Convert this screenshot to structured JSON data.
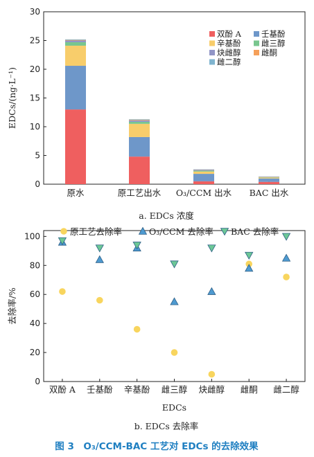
{
  "chart_data": [
    {
      "type": "bar",
      "stacked": true,
      "caption": "a. EDCs 浓度",
      "ylabel": "EDCs/(ng·L⁻¹)",
      "ylim": [
        0,
        30
      ],
      "yticks": [
        "0",
        "5",
        "10",
        "15",
        "20",
        "25",
        "30"
      ],
      "categories": [
        "原水",
        "原工艺出水",
        "O₃/CCM 出水",
        "BAC 出水"
      ],
      "series": [
        {
          "name": "双酚 A",
          "color": "#ef5f5f",
          "values": [
            13.0,
            4.8,
            0.5,
            0.4
          ]
        },
        {
          "name": "壬基酚",
          "color": "#6e97c9",
          "values": [
            7.6,
            3.4,
            1.3,
            0.6
          ]
        },
        {
          "name": "辛基酚",
          "color": "#f8cd6b",
          "values": [
            3.5,
            2.3,
            0.4,
            0.15
          ]
        },
        {
          "name": "雌三醇",
          "color": "#79c68e",
          "values": [
            0.6,
            0.35,
            0.15,
            0.05
          ]
        },
        {
          "name": "炔雌醇",
          "color": "#9195c6",
          "values": [
            0.3,
            0.25,
            0.15,
            0.05
          ]
        },
        {
          "name": "雌酮",
          "color": "#f5a05a",
          "values": [
            0.1,
            0.1,
            0.05,
            0.05
          ]
        },
        {
          "name": "雌二醇",
          "color": "#7fb4cf",
          "values": [
            0.1,
            0.1,
            0.05,
            0.05
          ]
        }
      ],
      "legend_position": "top-right"
    },
    {
      "type": "scatter",
      "caption": "b. EDCs 去除率",
      "xlabel": "EDCs",
      "ylabel": "去除率/%",
      "ylim": [
        0,
        100
      ],
      "yticks": [
        "0",
        "20",
        "40",
        "60",
        "80",
        "100"
      ],
      "categories": [
        "双酚 A",
        "壬基酚",
        "辛基酚",
        "雌三醇",
        "炔雌醇",
        "雌酮",
        "雌二醇"
      ],
      "series": [
        {
          "name": "原工艺去除率",
          "marker": "circle",
          "color": "#f8d55e",
          "values": [
            62,
            56,
            36,
            20,
            5,
            81,
            72
          ]
        },
        {
          "name": "O₃/CCM 去除率",
          "marker": "triangle-up",
          "color": "#4e9ad0",
          "values": [
            96,
            84,
            92,
            55,
            62,
            78,
            85
          ]
        },
        {
          "name": "BAC 去除率",
          "marker": "triangle-down",
          "color": "#6cc796",
          "values": [
            97,
            92,
            94,
            81,
            92,
            87,
            100
          ]
        }
      ],
      "legend_position": "top"
    }
  ],
  "figure_title": "图 3　O₃/CCM-BAC 工艺对 EDCs 的去除效果"
}
